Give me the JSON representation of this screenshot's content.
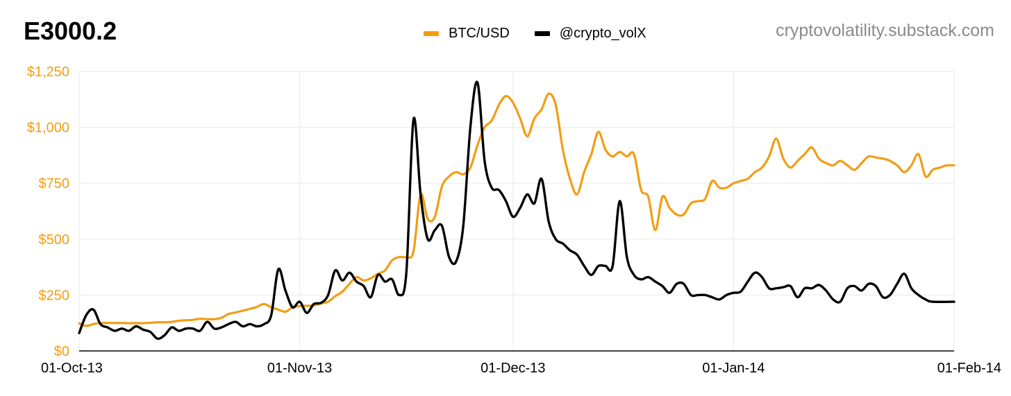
{
  "header": {
    "title": "E3000.2",
    "source": "cryptovolatility.substack.com"
  },
  "colors": {
    "btc": "#f39c12",
    "vol": "#000000",
    "grid": "#e9e9e9",
    "axis_text": "#f39c12"
  },
  "chart_data": {
    "type": "line",
    "title": "E3000.2",
    "legend_position": "top-center",
    "grid": true,
    "x_range": [
      "2013-10-01",
      "2014-02-01"
    ],
    "x_ticks": [
      "01-Oct-13",
      "01-Nov-13",
      "01-Dec-13",
      "01-Jan-14",
      "01-Feb-14"
    ],
    "y_range": [
      0,
      1250
    ],
    "y_ticks": [
      "$0",
      "$250",
      "$500",
      "$750",
      "$1,000",
      "$1,250"
    ],
    "y_tick_values": [
      0,
      250,
      500,
      750,
      1000,
      1250
    ],
    "series": [
      {
        "name": "BTC/USD",
        "color": "#f39c12",
        "points": [
          [
            "2013-10-01",
            123
          ],
          [
            "2013-10-02",
            112
          ],
          [
            "2013-10-03",
            120
          ],
          [
            "2013-10-04",
            125
          ],
          [
            "2013-10-05",
            125
          ],
          [
            "2013-10-06",
            125
          ],
          [
            "2013-10-07",
            125
          ],
          [
            "2013-10-08",
            124
          ],
          [
            "2013-10-09",
            124
          ],
          [
            "2013-10-10",
            124
          ],
          [
            "2013-10-11",
            126
          ],
          [
            "2013-10-12",
            128
          ],
          [
            "2013-10-13",
            128
          ],
          [
            "2013-10-14",
            130
          ],
          [
            "2013-10-15",
            135
          ],
          [
            "2013-10-16",
            137
          ],
          [
            "2013-10-17",
            139
          ],
          [
            "2013-10-18",
            144
          ],
          [
            "2013-10-19",
            142
          ],
          [
            "2013-10-20",
            142
          ],
          [
            "2013-10-21",
            148
          ],
          [
            "2013-10-22",
            165
          ],
          [
            "2013-10-23",
            172
          ],
          [
            "2013-10-24",
            180
          ],
          [
            "2013-10-25",
            188
          ],
          [
            "2013-10-26",
            197
          ],
          [
            "2013-10-27",
            210
          ],
          [
            "2013-10-28",
            195
          ],
          [
            "2013-10-29",
            185
          ],
          [
            "2013-10-30",
            175
          ],
          [
            "2013-10-31",
            196
          ],
          [
            "2013-11-01",
            200
          ],
          [
            "2013-11-02",
            202
          ],
          [
            "2013-11-03",
            204
          ],
          [
            "2013-11-04",
            212
          ],
          [
            "2013-11-05",
            220
          ],
          [
            "2013-11-06",
            245
          ],
          [
            "2013-11-07",
            265
          ],
          [
            "2013-11-08",
            300
          ],
          [
            "2013-11-09",
            330
          ],
          [
            "2013-11-10",
            315
          ],
          [
            "2013-11-11",
            325
          ],
          [
            "2013-11-12",
            345
          ],
          [
            "2013-11-13",
            360
          ],
          [
            "2013-11-14",
            405
          ],
          [
            "2013-11-15",
            420
          ],
          [
            "2013-11-16",
            420
          ],
          [
            "2013-11-17",
            445
          ],
          [
            "2013-11-18",
            700
          ],
          [
            "2013-11-19",
            590
          ],
          [
            "2013-11-20",
            600
          ],
          [
            "2013-11-21",
            735
          ],
          [
            "2013-11-22",
            780
          ],
          [
            "2013-11-23",
            800
          ],
          [
            "2013-11-24",
            790
          ],
          [
            "2013-11-25",
            820
          ],
          [
            "2013-11-26",
            920
          ],
          [
            "2013-11-27",
            1000
          ],
          [
            "2013-11-28",
            1030
          ],
          [
            "2013-11-29",
            1100
          ],
          [
            "2013-11-30",
            1140
          ],
          [
            "2013-12-01",
            1110
          ],
          [
            "2013-12-02",
            1040
          ],
          [
            "2013-12-03",
            960
          ],
          [
            "2013-12-04",
            1040
          ],
          [
            "2013-12-05",
            1080
          ],
          [
            "2013-12-06",
            1150
          ],
          [
            "2013-12-07",
            1100
          ],
          [
            "2013-12-08",
            900
          ],
          [
            "2013-12-09",
            770
          ],
          [
            "2013-12-10",
            700
          ],
          [
            "2013-12-11",
            800
          ],
          [
            "2013-12-12",
            880
          ],
          [
            "2013-12-13",
            980
          ],
          [
            "2013-12-14",
            900
          ],
          [
            "2013-12-15",
            870
          ],
          [
            "2013-12-16",
            890
          ],
          [
            "2013-12-17",
            870
          ],
          [
            "2013-12-18",
            880
          ],
          [
            "2013-12-19",
            720
          ],
          [
            "2013-12-20",
            690
          ],
          [
            "2013-12-21",
            540
          ],
          [
            "2013-12-22",
            690
          ],
          [
            "2013-12-23",
            640
          ],
          [
            "2013-12-24",
            610
          ],
          [
            "2013-12-25",
            610
          ],
          [
            "2013-12-26",
            660
          ],
          [
            "2013-12-27",
            670
          ],
          [
            "2013-12-28",
            680
          ],
          [
            "2013-12-29",
            760
          ],
          [
            "2013-12-30",
            730
          ],
          [
            "2013-12-31",
            730
          ],
          [
            "2014-01-01",
            750
          ],
          [
            "2014-01-02",
            760
          ],
          [
            "2014-01-03",
            770
          ],
          [
            "2014-01-04",
            800
          ],
          [
            "2014-01-05",
            820
          ],
          [
            "2014-01-06",
            870
          ],
          [
            "2014-01-07",
            950
          ],
          [
            "2014-01-08",
            860
          ],
          [
            "2014-01-09",
            820
          ],
          [
            "2014-01-10",
            850
          ],
          [
            "2014-01-11",
            880
          ],
          [
            "2014-01-12",
            910
          ],
          [
            "2014-01-13",
            860
          ],
          [
            "2014-01-14",
            840
          ],
          [
            "2014-01-15",
            830
          ],
          [
            "2014-01-16",
            850
          ],
          [
            "2014-01-17",
            830
          ],
          [
            "2014-01-18",
            810
          ],
          [
            "2014-01-19",
            840
          ],
          [
            "2014-01-20",
            870
          ],
          [
            "2014-01-21",
            865
          ],
          [
            "2014-01-22",
            860
          ],
          [
            "2014-01-23",
            850
          ],
          [
            "2014-01-24",
            830
          ],
          [
            "2014-01-25",
            800
          ],
          [
            "2014-01-26",
            830
          ],
          [
            "2014-01-27",
            880
          ],
          [
            "2014-01-28",
            780
          ],
          [
            "2014-01-29",
            810
          ],
          [
            "2014-01-30",
            820
          ],
          [
            "2014-01-31",
            830
          ],
          [
            "2014-02-01",
            830
          ]
        ]
      },
      {
        "name": "@crypto_volX",
        "color": "#000000",
        "points": [
          [
            "2013-10-01",
            80
          ],
          [
            "2013-10-02",
            160
          ],
          [
            "2013-10-03",
            185
          ],
          [
            "2013-10-04",
            120
          ],
          [
            "2013-10-05",
            105
          ],
          [
            "2013-10-06",
            90
          ],
          [
            "2013-10-07",
            100
          ],
          [
            "2013-10-08",
            90
          ],
          [
            "2013-10-09",
            110
          ],
          [
            "2013-10-10",
            95
          ],
          [
            "2013-10-11",
            85
          ],
          [
            "2013-10-12",
            55
          ],
          [
            "2013-10-13",
            70
          ],
          [
            "2013-10-14",
            105
          ],
          [
            "2013-10-15",
            90
          ],
          [
            "2013-10-16",
            100
          ],
          [
            "2013-10-17",
            100
          ],
          [
            "2013-10-18",
            90
          ],
          [
            "2013-10-19",
            130
          ],
          [
            "2013-10-20",
            100
          ],
          [
            "2013-10-21",
            105
          ],
          [
            "2013-10-22",
            120
          ],
          [
            "2013-10-23",
            130
          ],
          [
            "2013-10-24",
            110
          ],
          [
            "2013-10-25",
            120
          ],
          [
            "2013-10-26",
            110
          ],
          [
            "2013-10-27",
            120
          ],
          [
            "2013-10-28",
            160
          ],
          [
            "2013-10-29",
            365
          ],
          [
            "2013-10-30",
            270
          ],
          [
            "2013-10-31",
            195
          ],
          [
            "2013-11-01",
            220
          ],
          [
            "2013-11-02",
            170
          ],
          [
            "2013-11-03",
            210
          ],
          [
            "2013-11-04",
            215
          ],
          [
            "2013-11-05",
            250
          ],
          [
            "2013-11-06",
            360
          ],
          [
            "2013-11-07",
            315
          ],
          [
            "2013-11-08",
            350
          ],
          [
            "2013-11-09",
            310
          ],
          [
            "2013-11-10",
            290
          ],
          [
            "2013-11-11",
            240
          ],
          [
            "2013-11-12",
            340
          ],
          [
            "2013-11-13",
            310
          ],
          [
            "2013-11-14",
            320
          ],
          [
            "2013-11-15",
            250
          ],
          [
            "2013-11-16",
            350
          ],
          [
            "2013-11-17",
            1035
          ],
          [
            "2013-11-18",
            700
          ],
          [
            "2013-11-19",
            500
          ],
          [
            "2013-11-20",
            540
          ],
          [
            "2013-11-21",
            560
          ],
          [
            "2013-11-22",
            420
          ],
          [
            "2013-11-23",
            400
          ],
          [
            "2013-11-24",
            560
          ],
          [
            "2013-11-25",
            1000
          ],
          [
            "2013-11-26",
            1200
          ],
          [
            "2013-11-27",
            850
          ],
          [
            "2013-11-28",
            730
          ],
          [
            "2013-11-29",
            720
          ],
          [
            "2013-11-30",
            670
          ],
          [
            "2013-12-01",
            600
          ],
          [
            "2013-12-02",
            640
          ],
          [
            "2013-12-03",
            700
          ],
          [
            "2013-12-04",
            660
          ],
          [
            "2013-12-05",
            770
          ],
          [
            "2013-12-06",
            580
          ],
          [
            "2013-12-07",
            500
          ],
          [
            "2013-12-08",
            480
          ],
          [
            "2013-12-09",
            450
          ],
          [
            "2013-12-10",
            430
          ],
          [
            "2013-12-11",
            380
          ],
          [
            "2013-12-12",
            340
          ],
          [
            "2013-12-13",
            380
          ],
          [
            "2013-12-14",
            380
          ],
          [
            "2013-12-15",
            380
          ],
          [
            "2013-12-16",
            670
          ],
          [
            "2013-12-17",
            420
          ],
          [
            "2013-12-18",
            340
          ],
          [
            "2013-12-19",
            320
          ],
          [
            "2013-12-20",
            330
          ],
          [
            "2013-12-21",
            310
          ],
          [
            "2013-12-22",
            290
          ],
          [
            "2013-12-23",
            260
          ],
          [
            "2013-12-24",
            300
          ],
          [
            "2013-12-25",
            300
          ],
          [
            "2013-12-26",
            250
          ],
          [
            "2013-12-27",
            250
          ],
          [
            "2013-12-28",
            250
          ],
          [
            "2013-12-29",
            240
          ],
          [
            "2013-12-30",
            230
          ],
          [
            "2013-12-31",
            250
          ],
          [
            "2014-01-01",
            260
          ],
          [
            "2014-01-02",
            265
          ],
          [
            "2014-01-03",
            310
          ],
          [
            "2014-01-04",
            350
          ],
          [
            "2014-01-05",
            330
          ],
          [
            "2014-01-06",
            280
          ],
          [
            "2014-01-07",
            280
          ],
          [
            "2014-01-08",
            285
          ],
          [
            "2014-01-09",
            290
          ],
          [
            "2014-01-10",
            240
          ],
          [
            "2014-01-11",
            280
          ],
          [
            "2014-01-12",
            280
          ],
          [
            "2014-01-13",
            295
          ],
          [
            "2014-01-14",
            270
          ],
          [
            "2014-01-15",
            230
          ],
          [
            "2014-01-16",
            220
          ],
          [
            "2014-01-17",
            280
          ],
          [
            "2014-01-18",
            290
          ],
          [
            "2014-01-19",
            270
          ],
          [
            "2014-01-20",
            300
          ],
          [
            "2014-01-21",
            290
          ],
          [
            "2014-01-22",
            240
          ],
          [
            "2014-01-23",
            250
          ],
          [
            "2014-01-24",
            300
          ],
          [
            "2014-01-25",
            345
          ],
          [
            "2014-01-26",
            280
          ],
          [
            "2014-01-27",
            250
          ],
          [
            "2014-01-28",
            230
          ],
          [
            "2014-01-29",
            220
          ],
          [
            "2014-02-01",
            220
          ]
        ]
      }
    ]
  }
}
